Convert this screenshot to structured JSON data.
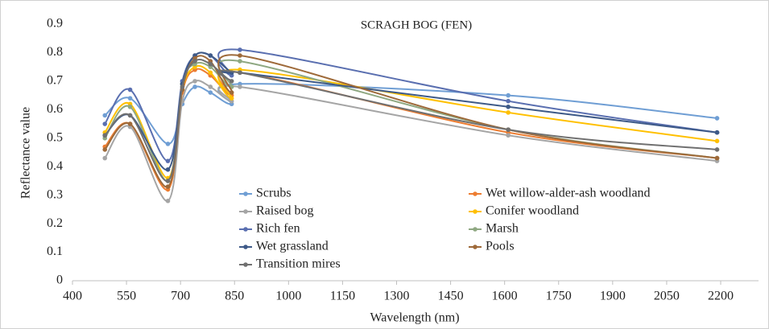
{
  "chart_data": {
    "type": "line",
    "title": "SCRAGH BOG (FEN)",
    "x_label": "Wavelength (nm)",
    "y_label": "Reflectance value",
    "x": [
      490,
      560,
      665,
      705,
      740,
      783,
      842,
      865,
      1610,
      2190
    ],
    "xlim": [
      400,
      2200
    ],
    "xticks": [
      400,
      550,
      700,
      850,
      1000,
      1150,
      1300,
      1450,
      1600,
      1750,
      1900,
      2050,
      2200
    ],
    "ylim": [
      0,
      0.9
    ],
    "yticks": [
      0,
      0.1,
      0.2,
      0.3,
      0.4,
      0.5,
      0.6,
      0.7,
      0.8,
      0.9
    ],
    "series": [
      {
        "name": "Scrubs",
        "color": "#6f9ed4",
        "values": [
          0.58,
          0.64,
          0.48,
          0.62,
          0.68,
          0.66,
          0.62,
          0.69,
          0.65,
          0.57
        ]
      },
      {
        "name": "Wet willow-alder-ash woodland",
        "color": "#ed7d31",
        "values": [
          0.47,
          0.55,
          0.32,
          0.66,
          0.74,
          0.72,
          0.65,
          0.73,
          0.52,
          0.43
        ]
      },
      {
        "name": "Raised bog",
        "color": "#a5a5a5",
        "values": [
          0.43,
          0.54,
          0.28,
          0.63,
          0.7,
          0.68,
          0.63,
          0.68,
          0.51,
          0.42
        ]
      },
      {
        "name": "Conifer woodland",
        "color": "#ffc000",
        "values": [
          0.52,
          0.62,
          0.36,
          0.67,
          0.75,
          0.73,
          0.64,
          0.74,
          0.59,
          0.49
        ]
      },
      {
        "name": "Rich fen",
        "color": "#5a6fb0",
        "values": [
          0.55,
          0.67,
          0.42,
          0.7,
          0.79,
          0.79,
          0.72,
          0.81,
          0.63,
          0.52
        ]
      },
      {
        "name": "Marsh",
        "color": "#8fa882",
        "values": [
          0.5,
          0.61,
          0.35,
          0.69,
          0.76,
          0.75,
          0.68,
          0.77,
          0.53,
          0.43
        ]
      },
      {
        "name": "Wet grassland",
        "color": "#3e5a88",
        "values": [
          0.51,
          0.58,
          0.39,
          0.69,
          0.79,
          0.79,
          0.73,
          0.73,
          0.61,
          0.52
        ]
      },
      {
        "name": "Pools",
        "color": "#9e6a3a",
        "values": [
          0.46,
          0.55,
          0.33,
          0.67,
          0.78,
          0.77,
          0.66,
          0.79,
          0.53,
          0.43
        ]
      },
      {
        "name": "Transition mires",
        "color": "#707070",
        "values": [
          0.51,
          0.58,
          0.35,
          0.68,
          0.77,
          0.76,
          0.7,
          0.73,
          0.53,
          0.46
        ]
      }
    ]
  }
}
